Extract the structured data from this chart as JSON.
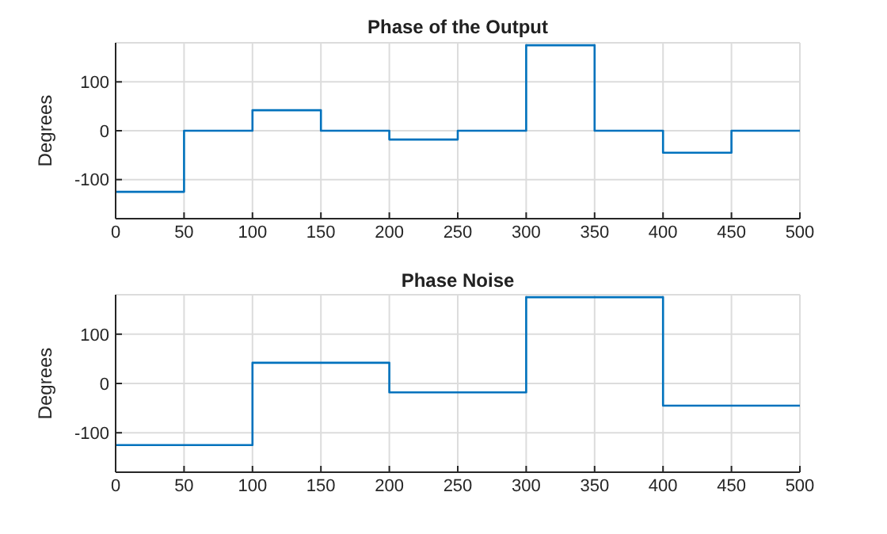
{
  "chart_data": [
    {
      "type": "step",
      "title": "Phase of the Output",
      "ylabel": "Degrees",
      "x": [
        0,
        50,
        100,
        150,
        200,
        250,
        300,
        350,
        400,
        450,
        500
      ],
      "series": [
        {
          "color": "#0072bd",
          "values": [
            -125,
            0,
            42,
            0,
            -18,
            0,
            175,
            0,
            -45,
            0,
            0
          ]
        }
      ],
      "xlim": [
        0,
        500
      ],
      "xticks": [
        0,
        50,
        100,
        150,
        200,
        250,
        300,
        350,
        400,
        450,
        500
      ],
      "ylim": [
        -180,
        180
      ],
      "yticks": [
        -100,
        0,
        100
      ],
      "grid": true,
      "legend": false
    },
    {
      "type": "step",
      "title": "Phase Noise",
      "ylabel": "Degrees",
      "x": [
        0,
        100,
        200,
        300,
        400,
        500
      ],
      "series": [
        {
          "color": "#0072bd",
          "values": [
            -125,
            42,
            -18,
            175,
            -45,
            -45
          ]
        }
      ],
      "xlim": [
        0,
        500
      ],
      "xticks": [
        0,
        50,
        100,
        150,
        200,
        250,
        300,
        350,
        400,
        450,
        500
      ],
      "ylim": [
        -180,
        180
      ],
      "yticks": [
        -100,
        0,
        100
      ],
      "grid": true,
      "legend": false
    }
  ]
}
